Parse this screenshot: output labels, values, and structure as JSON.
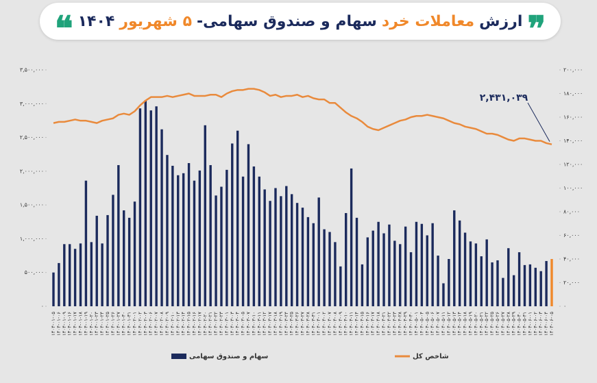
{
  "chart_data": {
    "type": "bar_line",
    "title_parts": [
      "ارزش",
      "معاملات خرد",
      "سهام و صندوق سهامی-",
      "۵ شهریور",
      "۱۴۰۴"
    ],
    "categories": [
      "۱۴۰۴-۰۱-۰۵",
      "۱۴۰۴-۰۱-۰۶",
      "۱۴۰۴-۰۱-۰۹",
      "۱۴۰۴-۰۱-۱۶",
      "۱۴۰۴-۰۱-۱۷",
      "۱۴۰۴-۰۱-۱۸",
      "۱۴۰۴-۰۱-۱۹",
      "۱۴۰۴-۰۱-۲۰",
      "۱۴۰۴-۰۱-۲۳",
      "۱۴۰۴-۰۱-۲۴",
      "۱۴۰۴-۰۱-۲۵",
      "۱۴۰۴-۰۱-۲۶",
      "۱۴۰۴-۰۱-۲۷",
      "۱۴۰۴-۰۱-۳۰",
      "۱۴۰۴-۰۱-۳۱",
      "۱۴۰۴-۰۲-۰۱",
      "۱۴۰۴-۰۲-۰۲",
      "۱۴۰۴-۰۲-۰۳",
      "۱۴۰۴-۰۲-۰۶",
      "۱۴۰۴-۰۲-۰۷",
      "۱۴۰۴-۰۲-۰۸",
      "۱۴۰۴-۰۲-۰۹",
      "۱۴۰۴-۰۲-۱۰",
      "۱۴۰۴-۰۲-۱۳",
      "۱۴۰۴-۰۲-۱۴",
      "۱۴۰۴-۰۲-۱۵",
      "۱۴۰۴-۰۲-۱۶",
      "۱۴۰۴-۰۲-۱۷",
      "۱۴۰۴-۰۲-۲۰",
      "۱۴۰۴-۰۲-۲۱",
      "۱۴۰۴-۰۲-۲۲",
      "۱۴۰۴-۰۲-۲۳",
      "۱۴۰۴-۰۳-۰۱",
      "۱۴۰۴-۰۳-۰۳",
      "۱۴۰۴-۰۳-۰۴",
      "۱۴۰۴-۰۳-۰۵",
      "۱۴۰۴-۰۳-۰۷",
      "۱۴۰۴-۰۳-۱۰",
      "۱۴۰۴-۰۳-۱۱",
      "۱۴۰۴-۰۳-۱۲",
      "۱۴۰۴-۰۳-۱۷",
      "۱۴۰۴-۰۳-۱۸",
      "۱۴۰۴-۰۳-۱۹",
      "۱۴۰۴-۰۳-۲۴",
      "۱۴۰۴-۰۳-۲۵",
      "۱۴۰۴-۰۳-۲۶",
      "۱۴۰۴-۰۳-۲۷",
      "۱۴۰۴-۰۳-۲۸",
      "۱۴۰۴-۰۳-۳۱",
      "۱۴۰۴-۰۴-۰۱",
      "۱۴۰۴-۰۴-۰۲",
      "۱۴۰۴-۰۴-۰۷",
      "۱۴۰۴-۰۴-۰۸",
      "۱۴۰۴-۰۴-۰۹",
      "۱۴۰۴-۰۴-۱۰",
      "۱۴۰۴-۰۴-۱۱",
      "۱۴۰۴-۰۴-۱۴",
      "۱۴۰۴-۰۴-۱۵",
      "۱۴۰۴-۰۴-۱۶",
      "۱۴۰۴-۰۴-۱۷",
      "۱۴۰۴-۰۴-۱۸",
      "۱۴۰۴-۰۴-۲۱",
      "۱۴۰۴-۰۴-۲۲",
      "۱۴۰۴-۰۴-۲۳",
      "۱۴۰۴-۰۴-۲۸",
      "۱۴۰۴-۰۴-۲۹",
      "۱۴۰۴-۰۴-۳۰",
      "۱۴۰۴-۰۵-۰۱",
      "۱۴۰۴-۰۵-۰۴",
      "۱۴۰۴-۰۵-۰۵",
      "۱۴۰۴-۰۵-۰۶",
      "۱۴۰۴-۰۵-۰۷",
      "۱۴۰۴-۰۵-۱۱",
      "۱۴۰۴-۰۵-۱۲",
      "۱۴۰۴-۰۵-۱۳",
      "۱۴۰۴-۰۵-۱۴",
      "۱۴۰۴-۰۵-۱۸",
      "۱۴۰۴-۰۵-۱۹",
      "۱۴۰۴-۰۵-۲۰",
      "۱۴۰۴-۰۵-۲۱",
      "۱۴۰۴-۰۵-۲۲",
      "۱۴۰۴-۰۵-۲۵",
      "۱۴۰۴-۰۵-۲۶",
      "۱۴۰۴-۰۵-۲۷",
      "۱۴۰۴-۰۵-۲۸",
      "۱۴۰۴-۰۵-۲۹",
      "۱۴۰۴-۰۵-۳۰",
      "۱۴۰۴-۰۵-۳۱",
      "۱۴۰۴-۰۶-۰۱",
      "۱۴۰۴-۰۶-۰۲",
      "۱۴۰۴-۰۶-۰۳",
      "۱۴۰۴-۰۶-۰۴",
      "۱۴۰۴-۰۶-۰۵"
    ],
    "series": [
      {
        "name": "سهام و صندوق سهامی",
        "type": "bar",
        "color": "#1b2a5c",
        "highlight": {
          "index": 92,
          "color": "#f0882a"
        },
        "values": [
          500000,
          640000,
          920000,
          920000,
          850000,
          930000,
          1860000,
          950000,
          1340000,
          930000,
          1350000,
          1650000,
          2090000,
          1420000,
          1310000,
          1550000,
          2930000,
          3050000,
          2900000,
          2960000,
          2620000,
          2240000,
          2080000,
          1940000,
          1970000,
          2120000,
          1860000,
          2010000,
          2680000,
          2090000,
          1640000,
          1770000,
          2020000,
          2410000,
          2600000,
          1920000,
          2400000,
          2070000,
          1920000,
          1730000,
          1560000,
          1750000,
          1630000,
          1780000,
          1660000,
          1530000,
          1460000,
          1320000,
          1230000,
          1610000,
          1140000,
          1100000,
          950000,
          590000,
          1380000,
          2040000,
          1310000,
          620000,
          1020000,
          1120000,
          1250000,
          1080000,
          1210000,
          970000,
          920000,
          1180000,
          800000,
          1250000,
          1220000,
          1050000,
          1230000,
          750000,
          340000,
          700000,
          1420000,
          1270000,
          1090000,
          960000,
          930000,
          740000,
          990000,
          650000,
          680000,
          420000,
          860000,
          460000,
          800000,
          610000,
          620000,
          570000,
          520000,
          670000,
          700000
        ]
      },
      {
        "name": "شاخص کل",
        "type": "line",
        "axis": "y2",
        "color": "#e98a3c",
        "values": [
          155000,
          156000,
          156000,
          157000,
          158000,
          157000,
          157000,
          156000,
          155000,
          157000,
          158000,
          159000,
          162000,
          163000,
          162000,
          165000,
          170000,
          174000,
          177000,
          177000,
          177000,
          178000,
          177000,
          178000,
          179000,
          180000,
          178000,
          178000,
          178000,
          179000,
          179000,
          177000,
          180000,
          182000,
          183000,
          183000,
          184000,
          184000,
          183000,
          181000,
          178000,
          179000,
          177000,
          178000,
          178000,
          179000,
          177000,
          178000,
          176000,
          175000,
          175000,
          172000,
          172000,
          168000,
          164000,
          161000,
          159000,
          156000,
          152000,
          150000,
          149000,
          151000,
          153000,
          155000,
          157000,
          158000,
          160000,
          161000,
          161000,
          162000,
          161000,
          160000,
          159000,
          157000,
          155000,
          154000,
          152000,
          151000,
          150000,
          148000,
          146000,
          146000,
          145000,
          143000,
          141000,
          140000,
          142000,
          142000,
          141000,
          140000,
          140000,
          138000,
          137000
        ]
      }
    ],
    "annotation": "۲,۴۳۱,۰۳۹",
    "ylim": [
      0,
      3500000
    ],
    "yticks": [
      {
        "value": 0,
        "label": "۰"
      },
      {
        "value": 500000,
        "label": "۵۰۰,۰۰۰"
      },
      {
        "value": 1000000,
        "label": "۱,۰۰۰,۰۰۰"
      },
      {
        "value": 1500000,
        "label": "۱,۵۰۰,۰۰۰"
      },
      {
        "value": 2000000,
        "label": "۲,۰۰۰,۰۰۰"
      },
      {
        "value": 2500000,
        "label": "۲,۵۰۰,۰۰۰"
      },
      {
        "value": 3000000,
        "label": "۳,۰۰۰,۰۰۰"
      },
      {
        "value": 3500000,
        "label": "۳,۵۰۰,۰۰۰"
      }
    ],
    "y2lim": [
      0,
      200000
    ],
    "y2ticks": [
      {
        "value": 0,
        "label": "۰"
      },
      {
        "value": 20000,
        "label": "۲۰,۰۰۰"
      },
      {
        "value": 40000,
        "label": "۴۰,۰۰۰"
      },
      {
        "value": 60000,
        "label": "۶۰,۰۰۰"
      },
      {
        "value": 80000,
        "label": "۸۰,۰۰۰"
      },
      {
        "value": 100000,
        "label": "۱۰۰,۰۰۰"
      },
      {
        "value": 120000,
        "label": "۱۲۰,۰۰۰"
      },
      {
        "value": 140000,
        "label": "۱۴۰,۰۰۰"
      },
      {
        "value": 160000,
        "label": "۱۶۰,۰۰۰"
      },
      {
        "value": 180000,
        "label": "۱۸۰,۰۰۰"
      },
      {
        "value": 200000,
        "label": "۲۰۰,۰۰۰"
      }
    ],
    "grid": false
  }
}
